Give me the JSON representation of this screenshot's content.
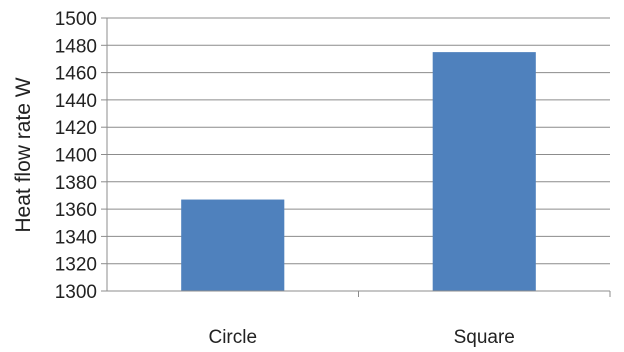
{
  "chart_data": {
    "type": "bar",
    "categories": [
      "Circle",
      "Square"
    ],
    "series": [
      {
        "values": [
          1367,
          1475
        ]
      }
    ],
    "xlabel": "",
    "ylabel": "Heat flow rate W",
    "ylim": [
      1300,
      1500
    ],
    "yticks": [
      1300,
      1320,
      1340,
      1360,
      1380,
      1400,
      1420,
      1440,
      1460,
      1480,
      1500
    ],
    "grid": true,
    "legend": "none",
    "bar_color": "#4F81BD",
    "grid_color": "#8C8C8C",
    "axis_color": "#8C8C8C"
  }
}
